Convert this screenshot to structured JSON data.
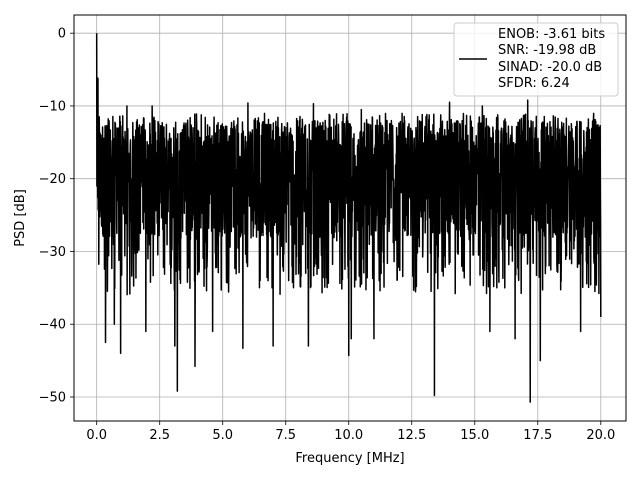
{
  "chart_data": {
    "type": "line",
    "title": "",
    "xlabel": "Frequency [MHz]",
    "ylabel": "PSD [dB]",
    "xlim": [
      -0.9,
      21.0
    ],
    "ylim": [
      -53.3,
      2.5
    ],
    "xticks": [
      0.0,
      2.5,
      5.0,
      7.5,
      10.0,
      12.5,
      15.0,
      17.5,
      20.0
    ],
    "xtick_labels": [
      "0.0",
      "2.5",
      "5.0",
      "7.5",
      "10.0",
      "12.5",
      "15.0",
      "17.5",
      "20.0"
    ],
    "yticks": [
      0,
      -10,
      -20,
      -30,
      -40,
      -50
    ],
    "ytick_labels": [
      "0",
      "−10",
      "−20",
      "−30",
      "−40",
      "−50"
    ],
    "grid": true,
    "legend_position": "top-right",
    "legend": [
      "ENOB: -3.61 bits",
      "SNR: -19.98 dB",
      "SINAD: -20.0 dB",
      "SFDR: 6.24"
    ],
    "series": [
      {
        "color": "#000000",
        "description_of_shape": "dense noise floor",
        "x_start": 0.0,
        "x_end": 20.0,
        "peak": [
          0.0,
          0.0
        ],
        "noise_band_upper": -12,
        "noise_band_lower": -28,
        "median_level": -20,
        "notable_minima": [
          [
            0.1,
            -42.0
          ],
          [
            0.35,
            -42.5
          ],
          [
            0.7,
            -40.0
          ],
          [
            0.95,
            -44.0
          ],
          [
            1.95,
            -41.0
          ],
          [
            3.1,
            -43.0
          ],
          [
            3.2,
            -49.2
          ],
          [
            3.9,
            -45.8
          ],
          [
            4.6,
            -41.0
          ],
          [
            5.8,
            -43.3
          ],
          [
            7.0,
            -43.0
          ],
          [
            8.4,
            -43.0
          ],
          [
            10.0,
            -44.3
          ],
          [
            10.1,
            -42.0
          ],
          [
            11.0,
            -42.0
          ],
          [
            13.4,
            -49.8
          ],
          [
            15.6,
            -41.0
          ],
          [
            16.6,
            -42.0
          ],
          [
            17.2,
            -50.7
          ],
          [
            17.6,
            -45.0
          ],
          [
            19.2,
            -41.0
          ],
          [
            20.0,
            -39.0
          ]
        ],
        "notable_maxima": [
          [
            0.05,
            -6.2
          ],
          [
            0.1,
            -11.5
          ],
          [
            1.2,
            -10.0
          ],
          [
            2.2,
            -10.0
          ],
          [
            6.0,
            -9.6
          ],
          [
            8.6,
            -9.7
          ],
          [
            10.5,
            -10.5
          ],
          [
            14.0,
            -9.5
          ],
          [
            15.3,
            -10.0
          ],
          [
            17.1,
            -9.2
          ]
        ]
      }
    ]
  }
}
